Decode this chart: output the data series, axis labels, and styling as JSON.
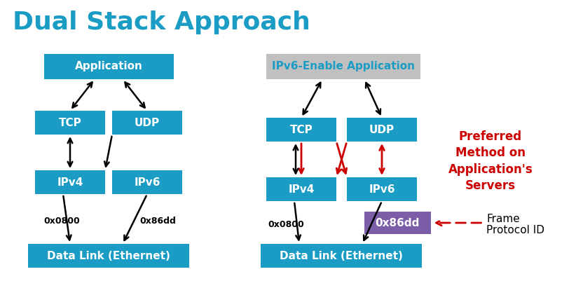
{
  "title": "Dual Stack Approach",
  "title_color": "#1A9CC4",
  "title_fontsize": 26,
  "bg_color": "#FFFFFF",
  "blue": "#1A9CC4",
  "gray": "#C0C0C0",
  "purple": "#7B5EA7",
  "white": "#FFFFFF",
  "black": "#000000",
  "red": "#CC0000",
  "note1": "Preferred\nMethod on\nApplication's\nServers",
  "note2_line1": "Frame",
  "note2_line2": "Protocol ID"
}
